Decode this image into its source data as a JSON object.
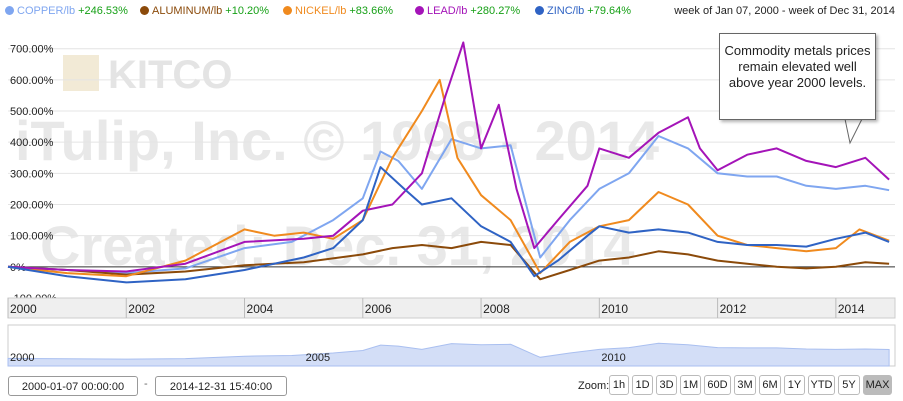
{
  "legend": [
    {
      "name": "COPPER/lb",
      "change": "+246.53%",
      "color": "#7fa6f0"
    },
    {
      "name": "ALUMINUM/lb",
      "change": "+10.20%",
      "color": "#8b4a0a"
    },
    {
      "name": "NICKEL/lb",
      "change": "+83.66%",
      "color": "#f08a1e"
    },
    {
      "name": "LEAD/lb",
      "change": "+280.27%",
      "color": "#a414b8"
    },
    {
      "name": "ZINC/lb",
      "change": "+79.64%",
      "color": "#2f63c4"
    }
  ],
  "date_range_text": "week of Jan 07, 2000 - week of Dec 31, 2014",
  "watermark": {
    "logo": "KITCO",
    "line1": "iTulip, Inc. © 1998 - 2014",
    "line2": "Created: Dec. 31, 2014"
  },
  "annotation": {
    "text": "Commodity metals prices remain elevated well above year 2000 levels."
  },
  "navigator": {
    "labels": [
      "2000",
      "2005",
      "2010"
    ]
  },
  "controls": {
    "from_date": "2000-01-07 00:00:00",
    "separator": "-",
    "to_date": "2014-12-31 15:40:00",
    "zoom_label": "Zoom:",
    "zoom_buttons": [
      "1h",
      "1D",
      "3D",
      "1M",
      "60D",
      "3M",
      "6M",
      "1Y",
      "YTD",
      "5Y",
      "MAX"
    ],
    "active_zoom": "MAX"
  },
  "chart_data": {
    "type": "line",
    "title": "",
    "xlabel": "",
    "ylabel": "",
    "x_ticks": [
      "2000",
      "2002",
      "2004",
      "2006",
      "2008",
      "2010",
      "2012",
      "2014"
    ],
    "y_ticks": [
      "700.00%",
      "600.00%",
      "500.00%",
      "400.00%",
      "300.00%",
      "200.00%",
      "100.00%",
      "0%",
      "-100.00%"
    ],
    "ylim": [
      -100,
      760
    ],
    "xlim": [
      2000.0,
      2015.0
    ],
    "series": [
      {
        "name": "COPPER/lb",
        "color": "#7fa6f0",
        "final_change": "+246.53%",
        "points": [
          [
            2000,
            0
          ],
          [
            2001,
            -10
          ],
          [
            2002,
            -20
          ],
          [
            2003,
            -5
          ],
          [
            2004,
            60
          ],
          [
            2004.8,
            80
          ],
          [
            2005.5,
            150
          ],
          [
            2006,
            220
          ],
          [
            2006.3,
            370
          ],
          [
            2006.6,
            340
          ],
          [
            2007,
            250
          ],
          [
            2007.5,
            410
          ],
          [
            2008,
            380
          ],
          [
            2008.5,
            390
          ],
          [
            2008.9,
            100
          ],
          [
            2009,
            30
          ],
          [
            2009.5,
            150
          ],
          [
            2010,
            250
          ],
          [
            2010.5,
            300
          ],
          [
            2011,
            420
          ],
          [
            2011.5,
            380
          ],
          [
            2012,
            300
          ],
          [
            2012.5,
            290
          ],
          [
            2013,
            290
          ],
          [
            2013.5,
            260
          ],
          [
            2014,
            250
          ],
          [
            2014.5,
            260
          ],
          [
            2014.9,
            246
          ]
        ]
      },
      {
        "name": "ALUMINUM/lb",
        "color": "#8b4a0a",
        "final_change": "+10.20%",
        "points": [
          [
            2000,
            0
          ],
          [
            2001,
            -10
          ],
          [
            2002,
            -25
          ],
          [
            2003,
            -15
          ],
          [
            2004,
            5
          ],
          [
            2005,
            15
          ],
          [
            2006,
            40
          ],
          [
            2006.5,
            60
          ],
          [
            2007,
            70
          ],
          [
            2007.5,
            60
          ],
          [
            2008,
            80
          ],
          [
            2008.5,
            70
          ],
          [
            2009,
            -40
          ],
          [
            2009.5,
            -10
          ],
          [
            2010,
            20
          ],
          [
            2010.5,
            30
          ],
          [
            2011,
            50
          ],
          [
            2011.5,
            40
          ],
          [
            2012,
            20
          ],
          [
            2012.5,
            10
          ],
          [
            2013,
            0
          ],
          [
            2013.5,
            -5
          ],
          [
            2014,
            0
          ],
          [
            2014.5,
            15
          ],
          [
            2014.9,
            10
          ]
        ]
      },
      {
        "name": "NICKEL/lb",
        "color": "#f08a1e",
        "final_change": "+83.66%",
        "points": [
          [
            2000,
            0
          ],
          [
            2001,
            -20
          ],
          [
            2002,
            -30
          ],
          [
            2003,
            20
          ],
          [
            2004,
            120
          ],
          [
            2004.5,
            100
          ],
          [
            2005,
            110
          ],
          [
            2005.5,
            90
          ],
          [
            2006,
            150
          ],
          [
            2006.5,
            350
          ],
          [
            2007,
            500
          ],
          [
            2007.3,
            600
          ],
          [
            2007.6,
            350
          ],
          [
            2008,
            230
          ],
          [
            2008.5,
            150
          ],
          [
            2009,
            -20
          ],
          [
            2009.5,
            80
          ],
          [
            2010,
            130
          ],
          [
            2010.5,
            150
          ],
          [
            2011,
            240
          ],
          [
            2011.5,
            200
          ],
          [
            2012,
            100
          ],
          [
            2012.5,
            70
          ],
          [
            2013,
            60
          ],
          [
            2013.5,
            50
          ],
          [
            2014,
            60
          ],
          [
            2014.4,
            120
          ],
          [
            2014.9,
            84
          ]
        ]
      },
      {
        "name": "LEAD/lb",
        "color": "#a414b8",
        "final_change": "+280.27%",
        "points": [
          [
            2000,
            0
          ],
          [
            2001,
            -10
          ],
          [
            2002,
            -15
          ],
          [
            2003,
            10
          ],
          [
            2004,
            80
          ],
          [
            2005,
            90
          ],
          [
            2005.5,
            100
          ],
          [
            2006,
            180
          ],
          [
            2006.5,
            200
          ],
          [
            2007,
            300
          ],
          [
            2007.4,
            550
          ],
          [
            2007.7,
            720
          ],
          [
            2008,
            380
          ],
          [
            2008.3,
            520
          ],
          [
            2008.6,
            250
          ],
          [
            2008.9,
            60
          ],
          [
            2009.3,
            150
          ],
          [
            2009.8,
            260
          ],
          [
            2010,
            380
          ],
          [
            2010.5,
            350
          ],
          [
            2011,
            430
          ],
          [
            2011.5,
            480
          ],
          [
            2011.7,
            380
          ],
          [
            2012,
            310
          ],
          [
            2012.5,
            360
          ],
          [
            2013,
            380
          ],
          [
            2013.5,
            340
          ],
          [
            2014,
            320
          ],
          [
            2014.5,
            350
          ],
          [
            2014.9,
            280
          ]
        ]
      },
      {
        "name": "ZINC/lb",
        "color": "#2f63c4",
        "final_change": "+79.64%",
        "points": [
          [
            2000,
            0
          ],
          [
            2001,
            -30
          ],
          [
            2002,
            -50
          ],
          [
            2003,
            -40
          ],
          [
            2004,
            -10
          ],
          [
            2005,
            30
          ],
          [
            2005.5,
            60
          ],
          [
            2006,
            150
          ],
          [
            2006.3,
            320
          ],
          [
            2006.7,
            250
          ],
          [
            2007,
            200
          ],
          [
            2007.5,
            220
          ],
          [
            2008,
            130
          ],
          [
            2008.5,
            80
          ],
          [
            2008.9,
            -30
          ],
          [
            2009.3,
            20
          ],
          [
            2009.8,
            100
          ],
          [
            2010,
            130
          ],
          [
            2010.5,
            110
          ],
          [
            2011,
            120
          ],
          [
            2011.5,
            110
          ],
          [
            2012,
            80
          ],
          [
            2012.5,
            70
          ],
          [
            2013,
            70
          ],
          [
            2013.5,
            65
          ],
          [
            2014,
            90
          ],
          [
            2014.5,
            110
          ],
          [
            2014.9,
            80
          ]
        ]
      }
    ]
  }
}
